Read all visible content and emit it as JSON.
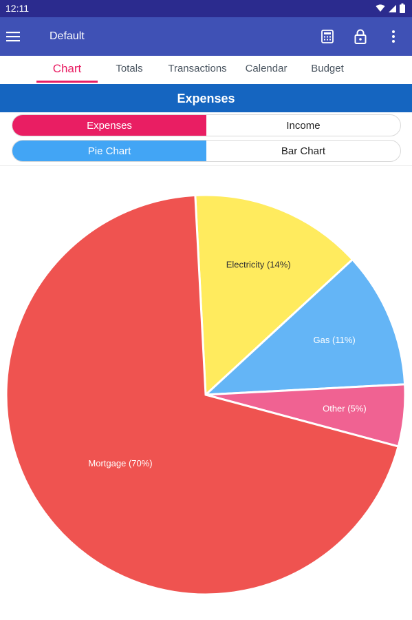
{
  "status_bar": {
    "time": "12:11",
    "icons": [
      "wifi-icon",
      "signal-icon",
      "battery-icon"
    ]
  },
  "app_bar": {
    "title": "Default",
    "icons": [
      "menu-icon",
      "calculator-icon",
      "lock-icon",
      "more-vert-icon"
    ]
  },
  "tabs": [
    {
      "label": "Chart",
      "active": true
    },
    {
      "label": "Totals",
      "active": false
    },
    {
      "label": "Transactions",
      "active": false
    },
    {
      "label": "Calendar",
      "active": false
    },
    {
      "label": "Budget",
      "active": false
    }
  ],
  "section_header": "Expenses",
  "type_toggle": {
    "options": [
      "Expenses",
      "Income"
    ],
    "selected": "Expenses"
  },
  "chart_toggle": {
    "options": [
      "Pie Chart",
      "Bar Chart"
    ],
    "selected": "Pie Chart"
  },
  "colors": {
    "status_bar": "#2b2b8e",
    "app_bar": "#3f51b5",
    "tab_accent": "#e91e63",
    "section_header": "#1565c0",
    "toggle_blue": "#42a5f5"
  },
  "chart_data": {
    "type": "pie",
    "title": "",
    "slices": [
      {
        "name": "Electricity",
        "value": 14,
        "label": "Electricity (14%)",
        "color": "#ffeb5e"
      },
      {
        "name": "Gas",
        "value": 11,
        "label": "Gas (11%)",
        "color": "#64b5f6"
      },
      {
        "name": "Other",
        "value": 5,
        "label": "Other (5%)",
        "color": "#f06292"
      },
      {
        "name": "Mortgage",
        "value": 70,
        "label": "Mortgage (70%)",
        "color": "#ef5350"
      }
    ]
  }
}
